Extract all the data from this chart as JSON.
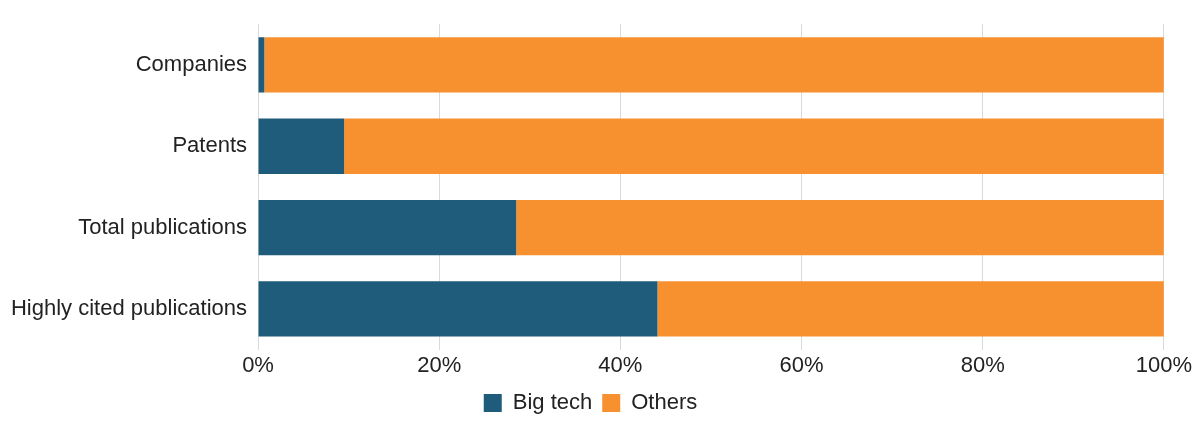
{
  "chart_data": {
    "type": "bar",
    "orientation": "horizontal",
    "stacked": true,
    "categories": [
      "Companies",
      "Patents",
      "Total publications",
      "Highly cited publications"
    ],
    "series": [
      {
        "name": "Big tech",
        "color": "#1f5b7a",
        "values": [
          0.7,
          9.5,
          28.5,
          44.1
        ]
      },
      {
        "name": "Others",
        "color": "#f7902f",
        "values": [
          99.3,
          90.5,
          71.5,
          55.9
        ]
      }
    ],
    "xlim": [
      0,
      100
    ],
    "xticks": [
      {
        "value": 0,
        "label": "0%"
      },
      {
        "value": 20,
        "label": "20%"
      },
      {
        "value": 40,
        "label": "40%"
      },
      {
        "value": 60,
        "label": "60%"
      },
      {
        "value": 80,
        "label": "80%"
      },
      {
        "value": 100,
        "label": "100%"
      }
    ],
    "grid": "x",
    "legend": "bottom"
  }
}
